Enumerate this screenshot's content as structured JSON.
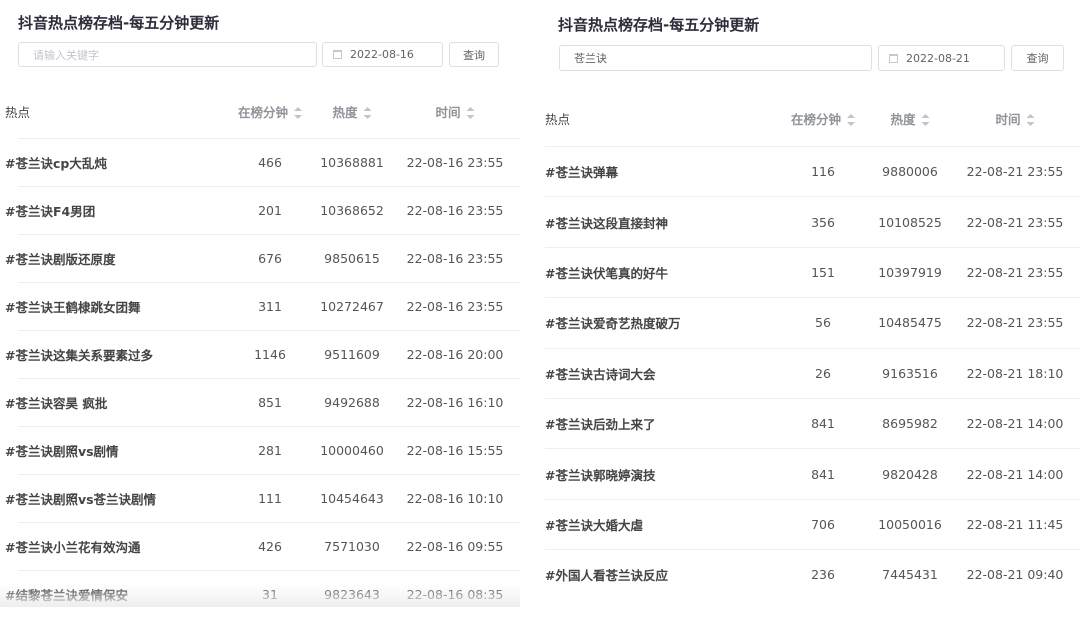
{
  "columns": {
    "name": "热点",
    "minutes": "在榜分钟",
    "heat": "热度",
    "time": "时间"
  },
  "panels": [
    {
      "title": "抖音热点榜存档-每五分钟更新",
      "search_value": "",
      "search_placeholder": "请输入关键字",
      "date": "2022-08-16",
      "query_label": "查询",
      "rows": [
        {
          "name": "#苍兰诀cp大乱炖",
          "minutes": "466",
          "heat": "10368881",
          "time": "22-08-16 23:55"
        },
        {
          "name": "#苍兰诀F4男团",
          "minutes": "201",
          "heat": "10368652",
          "time": "22-08-16 23:55"
        },
        {
          "name": "#苍兰诀剧版还原度",
          "minutes": "676",
          "heat": "9850615",
          "time": "22-08-16 23:55"
        },
        {
          "name": "#苍兰诀王鹤棣跳女团舞",
          "minutes": "311",
          "heat": "10272467",
          "time": "22-08-16 23:55"
        },
        {
          "name": "#苍兰诀这集关系要素过多",
          "minutes": "1146",
          "heat": "9511609",
          "time": "22-08-16 20:00"
        },
        {
          "name": "#苍兰诀容昊 疯批",
          "minutes": "851",
          "heat": "9492688",
          "time": "22-08-16 16:10"
        },
        {
          "name": "#苍兰诀剧照vs剧情",
          "minutes": "281",
          "heat": "10000460",
          "time": "22-08-16 15:55"
        },
        {
          "name": "#苍兰诀剧照vs苍兰诀剧情",
          "minutes": "111",
          "heat": "10454643",
          "time": "22-08-16 10:10"
        },
        {
          "name": "#苍兰诀小兰花有效沟通",
          "minutes": "426",
          "heat": "7571030",
          "time": "22-08-16 09:55"
        },
        {
          "name": "#结黎苍兰诀爱情保安",
          "minutes": "31",
          "heat": "9823643",
          "time": "22-08-16 08:35"
        }
      ]
    },
    {
      "title": "抖音热点榜存档-每五分钟更新",
      "search_value": "苍兰诀",
      "search_placeholder": "",
      "date": "2022-08-21",
      "query_label": "查询",
      "rows": [
        {
          "name": "#苍兰诀弹幕",
          "minutes": "116",
          "heat": "9880006",
          "time": "22-08-21 23:55"
        },
        {
          "name": "#苍兰诀这段直接封神",
          "minutes": "356",
          "heat": "10108525",
          "time": "22-08-21 23:55"
        },
        {
          "name": "#苍兰诀伏笔真的好牛",
          "minutes": "151",
          "heat": "10397919",
          "time": "22-08-21 23:55"
        },
        {
          "name": "#苍兰诀爱奇艺热度破万",
          "minutes": "56",
          "heat": "10485475",
          "time": "22-08-21 23:55"
        },
        {
          "name": "#苍兰诀古诗词大会",
          "minutes": "26",
          "heat": "9163516",
          "time": "22-08-21 18:10"
        },
        {
          "name": "#苍兰诀后劲上来了",
          "minutes": "841",
          "heat": "8695982",
          "time": "22-08-21 14:00"
        },
        {
          "name": "#苍兰诀郭晓婷演技",
          "minutes": "841",
          "heat": "9820428",
          "time": "22-08-21 14:00"
        },
        {
          "name": "#苍兰诀大婚大虐",
          "minutes": "706",
          "heat": "10050016",
          "time": "22-08-21 11:45"
        },
        {
          "name": "#外国人看苍兰诀反应",
          "minutes": "236",
          "heat": "7445431",
          "time": "22-08-21 09:40"
        }
      ]
    }
  ]
}
